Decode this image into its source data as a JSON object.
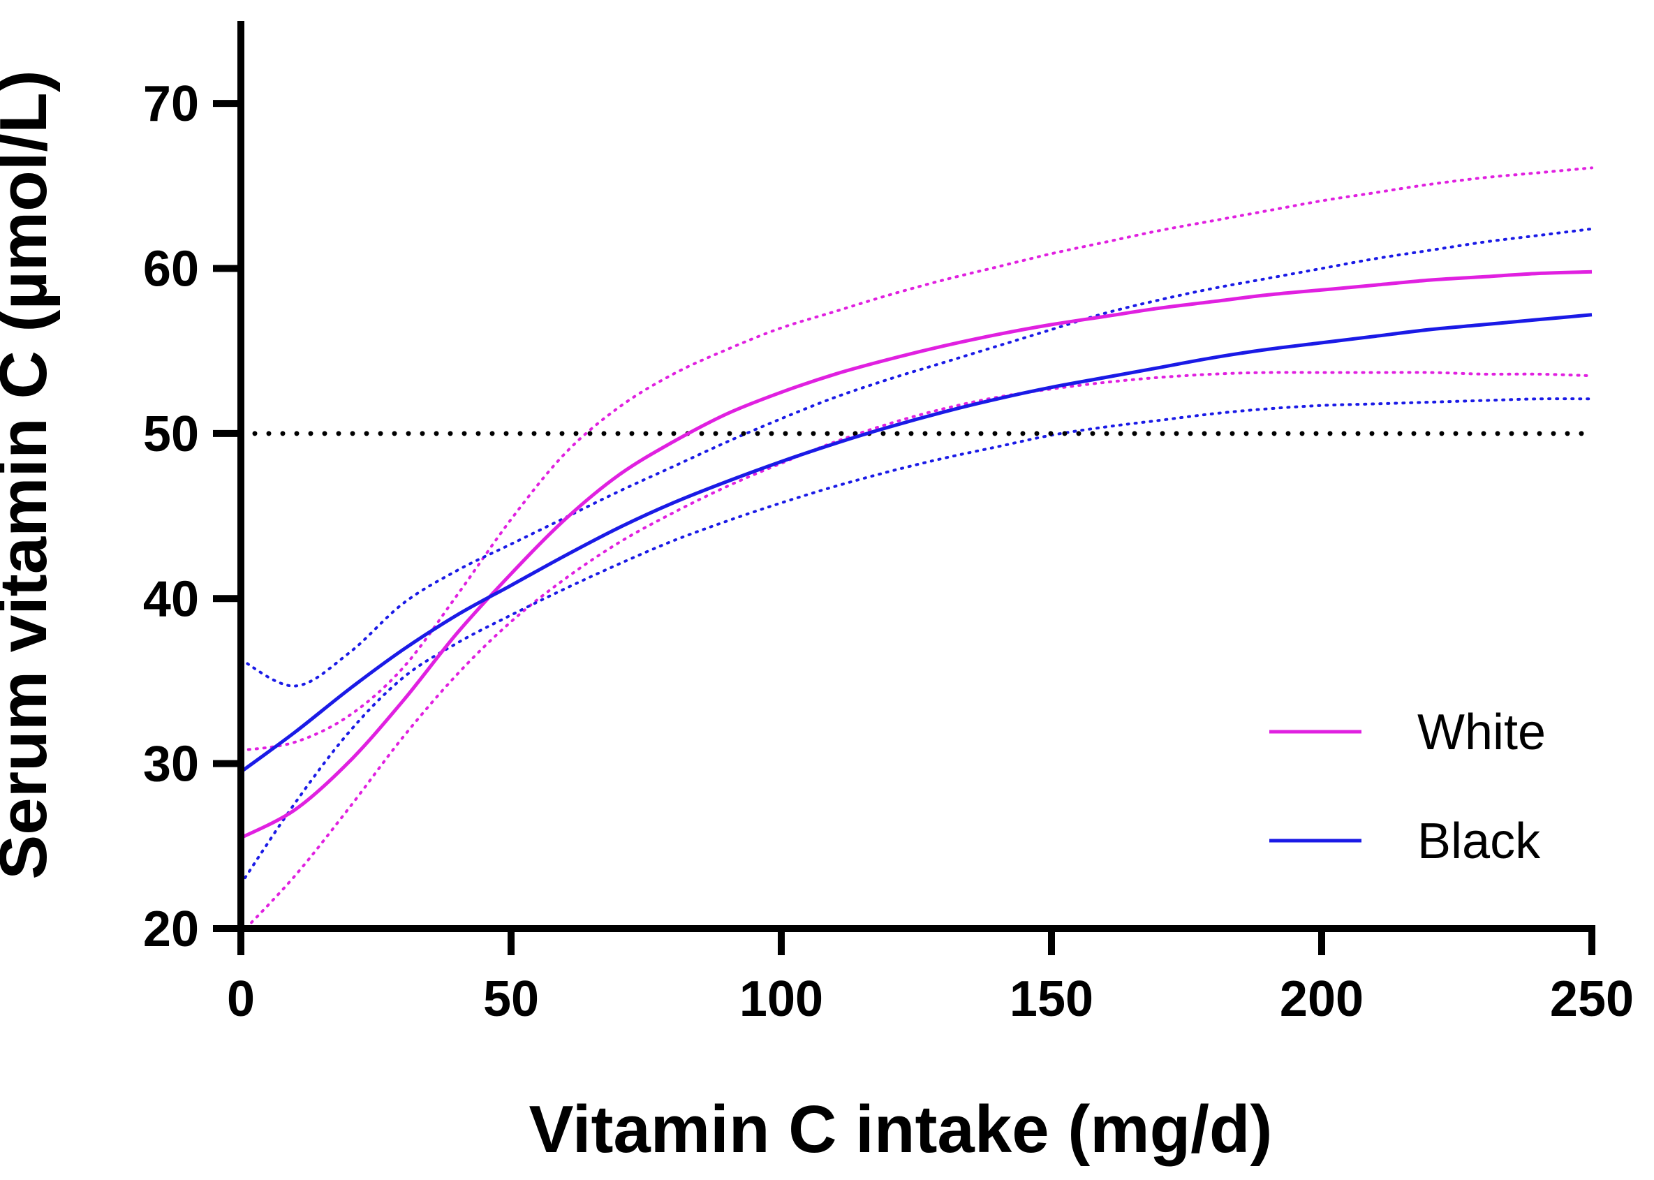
{
  "chart_data": {
    "type": "line",
    "xlabel": "Vitamin C intake (mg/d)",
    "ylabel": "Serum vitamin C (µmol/L)",
    "xlim": [
      0,
      250
    ],
    "ylim": [
      20,
      75
    ],
    "xticks": [
      0,
      50,
      100,
      150,
      200,
      250
    ],
    "yticks": [
      20,
      30,
      40,
      50,
      60,
      70
    ],
    "grid": false,
    "legend_position": "bottom-right",
    "reference_line": {
      "y": 50,
      "style": "dotted",
      "color": "#000000"
    },
    "series": [
      {
        "name": "White",
        "color": "#e020e0",
        "x": [
          0,
          10,
          20,
          30,
          40,
          50,
          60,
          70,
          80,
          90,
          100,
          110,
          120,
          130,
          140,
          150,
          160,
          170,
          180,
          190,
          200,
          210,
          220,
          230,
          240,
          250
        ],
        "y": [
          25.5,
          27.2,
          30.1,
          33.8,
          37.9,
          41.5,
          44.8,
          47.5,
          49.5,
          51.2,
          52.5,
          53.6,
          54.5,
          55.3,
          56.0,
          56.6,
          57.1,
          57.6,
          58.0,
          58.4,
          58.7,
          59.0,
          59.3,
          59.5,
          59.7,
          59.8
        ],
        "ci_upper": [
          30.8,
          31.3,
          32.9,
          35.8,
          40.2,
          44.8,
          48.8,
          51.6,
          53.6,
          55.1,
          56.4,
          57.4,
          58.4,
          59.3,
          60.1,
          60.9,
          61.6,
          62.3,
          62.9,
          63.5,
          64.1,
          64.6,
          65.1,
          65.5,
          65.8,
          66.1
        ],
        "ci_lower": [
          19.7,
          23.2,
          27.3,
          31.6,
          35.4,
          38.6,
          41.2,
          43.4,
          45.2,
          46.8,
          48.2,
          49.5,
          50.6,
          51.5,
          52.2,
          52.7,
          53.1,
          53.4,
          53.6,
          53.7,
          53.7,
          53.7,
          53.7,
          53.6,
          53.6,
          53.5
        ]
      },
      {
        "name": "Black",
        "color": "#1a1ae6",
        "x": [
          0,
          10,
          20,
          30,
          40,
          50,
          60,
          70,
          80,
          90,
          100,
          110,
          120,
          130,
          140,
          150,
          160,
          170,
          180,
          190,
          200,
          210,
          220,
          230,
          240,
          250
        ],
        "y": [
          29.5,
          31.9,
          34.5,
          36.9,
          39.0,
          40.8,
          42.6,
          44.3,
          45.8,
          47.1,
          48.3,
          49.4,
          50.4,
          51.3,
          52.1,
          52.8,
          53.4,
          54.0,
          54.6,
          55.1,
          55.5,
          55.9,
          56.3,
          56.6,
          56.9,
          57.2
        ],
        "ci_upper": [
          36.3,
          34.7,
          36.7,
          39.7,
          41.7,
          43.3,
          44.9,
          46.5,
          48.0,
          49.5,
          50.9,
          52.2,
          53.3,
          54.3,
          55.3,
          56.3,
          57.3,
          58.1,
          58.8,
          59.4,
          60.0,
          60.6,
          61.1,
          61.6,
          62.0,
          62.4
        ],
        "ci_lower": [
          22.7,
          27.6,
          31.9,
          35.2,
          37.3,
          39.0,
          40.6,
          42.1,
          43.5,
          44.7,
          45.8,
          46.8,
          47.7,
          48.5,
          49.2,
          49.9,
          50.4,
          50.8,
          51.2,
          51.5,
          51.7,
          51.8,
          51.9,
          52.0,
          52.1,
          52.1
        ]
      }
    ]
  }
}
